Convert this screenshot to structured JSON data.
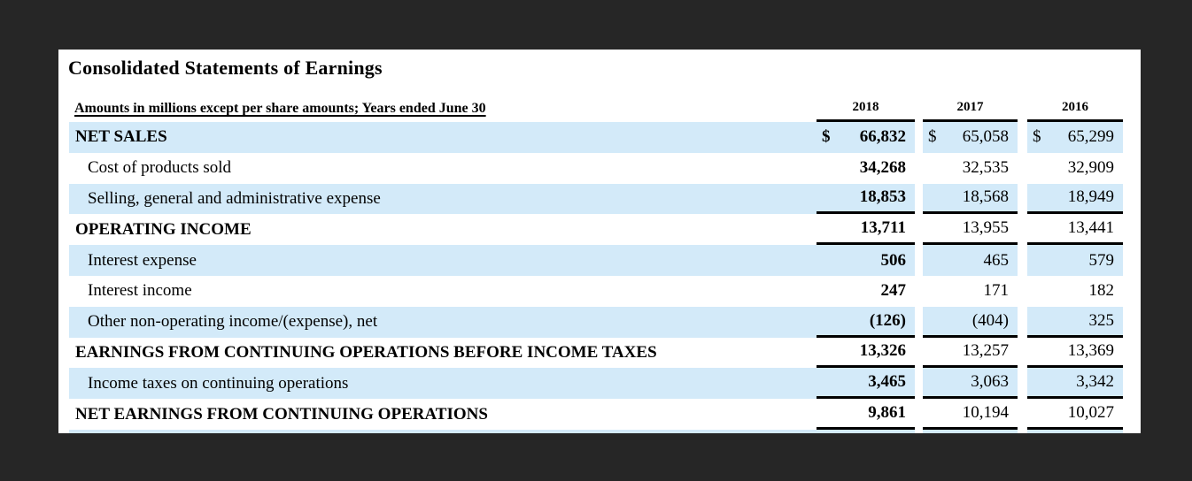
{
  "colors": {
    "canvas_background": "#262626",
    "page_background": "#ffffff",
    "row_highlight": "#d3eaf9",
    "rule": "#000000",
    "text": "#000000"
  },
  "statement": {
    "title": "Consolidated Statements of Earnings",
    "caption": "Amounts in millions except per share amounts; Years ended June 30",
    "year_columns": [
      "2018",
      "2017",
      "2016"
    ],
    "rows": [
      {
        "label": "NET SALES",
        "currency": "$",
        "values": [
          "66,832",
          "65,058",
          "65,299"
        ]
      },
      {
        "label": "Cost of products sold",
        "values": [
          "34,268",
          "32,535",
          "32,909"
        ]
      },
      {
        "label": "Selling, general and administrative expense",
        "values": [
          "18,853",
          "18,568",
          "18,949"
        ]
      },
      {
        "label": "OPERATING INCOME",
        "values": [
          "13,711",
          "13,955",
          "13,441"
        ]
      },
      {
        "label": "Interest expense",
        "values": [
          "506",
          "465",
          "579"
        ]
      },
      {
        "label": "Interest income",
        "values": [
          "247",
          "171",
          "182"
        ]
      },
      {
        "label": "Other non-operating income/(expense), net",
        "values": [
          "(126)",
          "(404)",
          "325"
        ]
      },
      {
        "label": "EARNINGS FROM CONTINUING OPERATIONS BEFORE INCOME TAXES",
        "values": [
          "13,326",
          "13,257",
          "13,369"
        ]
      },
      {
        "label": "Income taxes on continuing operations",
        "values": [
          "3,465",
          "3,063",
          "3,342"
        ]
      },
      {
        "label": "NET EARNINGS FROM CONTINUING OPERATIONS",
        "values": [
          "9,861",
          "10,194",
          "10,027"
        ]
      }
    ]
  }
}
